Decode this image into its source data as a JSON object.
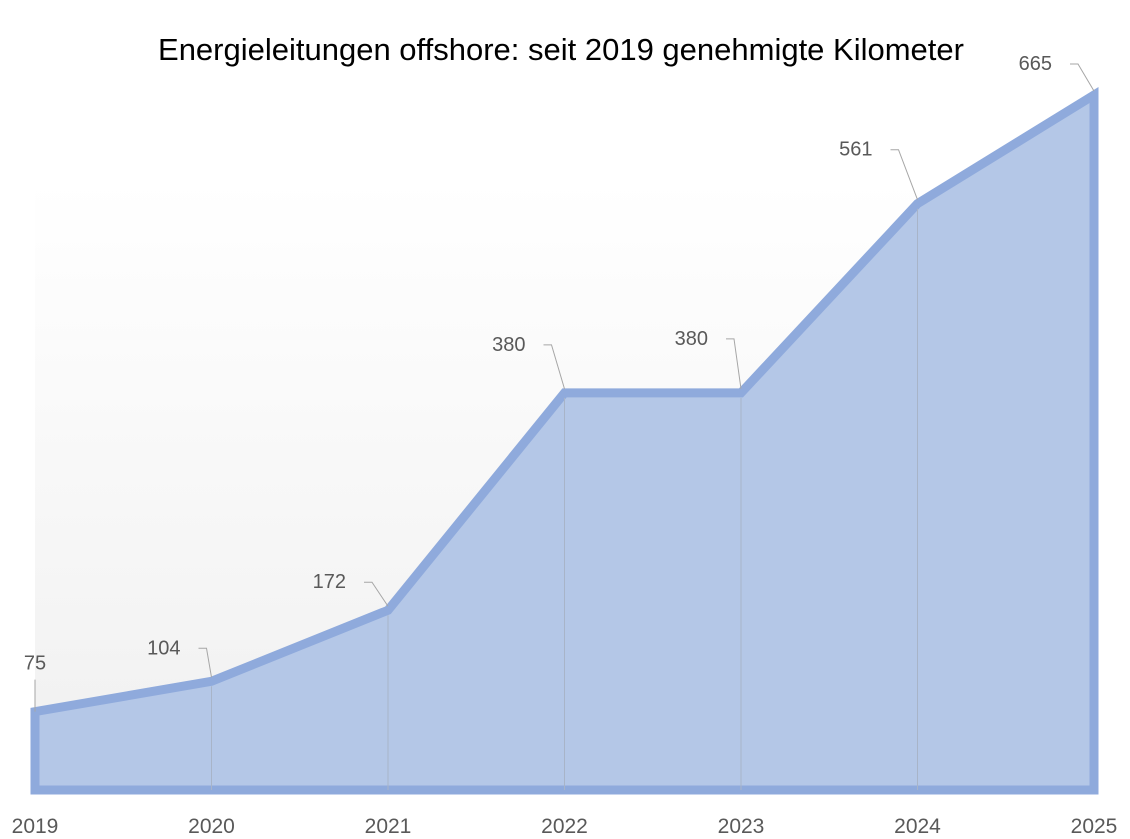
{
  "chart_data": {
    "type": "area",
    "title": "Energieleitungen offshore: seit 2019 genehmigte Kilometer",
    "categories": [
      "2019",
      "2020",
      "2021",
      "2022",
      "2023",
      "2024",
      "2025"
    ],
    "values": [
      75,
      104,
      172,
      380,
      380,
      561,
      665
    ],
    "data_labels": [
      "75",
      "104",
      "172",
      "380",
      "380",
      "561",
      "665"
    ],
    "xlabel": "",
    "ylabel": "",
    "ylim": [
      0,
      665
    ],
    "grid": false,
    "legend": "none",
    "colors": {
      "line": "#8faadc",
      "fill": "#b4c7e7",
      "text": "#595959",
      "leader": "#a6a6a6"
    }
  }
}
